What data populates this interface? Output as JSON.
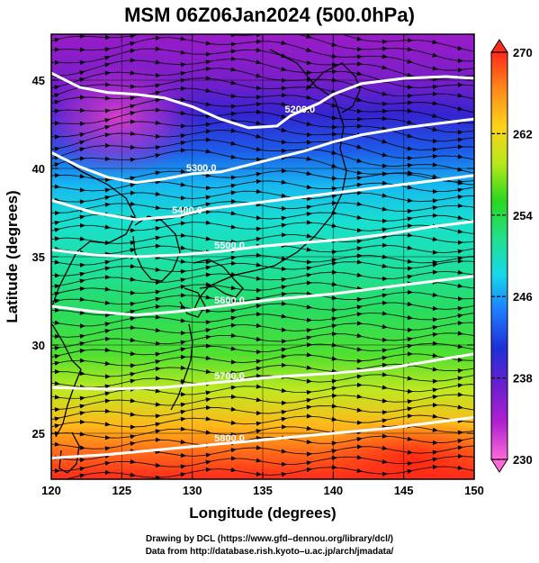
{
  "title": "MSM 06Z06Jan2024 (500.0hPa)",
  "credits": {
    "line1": "Drawing by DCL (https://www.gfd–dennou.org/library/dcl/)",
    "line2": "Data from http://database.rish.kyoto–u.ac.jp/arch/jmadata/"
  },
  "chart_data": {
    "type": "heatmap",
    "title": "MSM 06Z06Jan2024 (500.0hPa)",
    "xlabel": "Longitude (degrees)",
    "ylabel": "Latitude  (degrees)",
    "xlim": [
      120,
      150
    ],
    "ylim": [
      22.4,
      47.6
    ],
    "x_ticks": [
      120,
      125,
      130,
      135,
      140,
      145,
      150
    ],
    "y_ticks": [
      25,
      30,
      35,
      40,
      45
    ],
    "colorbar": {
      "min": 230,
      "max": 270,
      "ticks": [
        230,
        238,
        246,
        254,
        262,
        270
      ],
      "colors": [
        "#ff6ad8",
        "#b020d0",
        "#6a1fd0",
        "#1f2fd8",
        "#1e7bff",
        "#17d8e8",
        "#22e08a",
        "#2ad81e",
        "#b8e81a",
        "#ffd21a",
        "#ff8a1a",
        "#ff2a1a"
      ]
    },
    "contours": [
      {
        "label": "5200.0",
        "points": [
          [
            120,
            45.4
          ],
          [
            122,
            44.6
          ],
          [
            124,
            44.3
          ],
          [
            126,
            44.2
          ],
          [
            128,
            44.0
          ],
          [
            130,
            43.5
          ],
          [
            132,
            42.8
          ],
          [
            134,
            42.3
          ],
          [
            136,
            42.4
          ],
          [
            137,
            43.0
          ],
          [
            139,
            43.7
          ],
          [
            140,
            44.2
          ],
          [
            142,
            44.8
          ],
          [
            145,
            45.1
          ],
          [
            148,
            45.2
          ],
          [
            150,
            45.1
          ]
        ]
      },
      {
        "label": "5300.0",
        "points": [
          [
            120,
            40.9
          ],
          [
            122,
            40.1
          ],
          [
            124,
            39.5
          ],
          [
            126,
            39.2
          ],
          [
            128,
            39.4
          ],
          [
            130,
            39.7
          ],
          [
            132,
            39.8
          ],
          [
            134,
            40.2
          ],
          [
            136,
            40.6
          ],
          [
            138,
            41.0
          ],
          [
            140,
            41.5
          ],
          [
            142,
            41.9
          ],
          [
            145,
            42.3
          ],
          [
            148,
            42.6
          ],
          [
            150,
            42.8
          ]
        ]
      },
      {
        "label": "5400.0",
        "points": [
          [
            120,
            38.2
          ],
          [
            123,
            37.5
          ],
          [
            126,
            37.1
          ],
          [
            129,
            37.3
          ],
          [
            131,
            37.7
          ],
          [
            134,
            38.0
          ],
          [
            137,
            38.3
          ],
          [
            140,
            38.6
          ],
          [
            143,
            38.9
          ],
          [
            146,
            39.2
          ],
          [
            150,
            39.6
          ]
        ]
      },
      {
        "label": "5500.0",
        "points": [
          [
            120,
            35.4
          ],
          [
            123,
            35.1
          ],
          [
            126,
            35.0
          ],
          [
            129,
            35.1
          ],
          [
            132,
            35.3
          ],
          [
            135,
            35.6
          ],
          [
            138,
            35.8
          ],
          [
            141,
            36.0
          ],
          [
            144,
            36.3
          ],
          [
            147,
            36.7
          ],
          [
            150,
            37.0
          ]
        ]
      },
      {
        "label": "5600.0",
        "points": [
          [
            120,
            32.2
          ],
          [
            123,
            31.9
          ],
          [
            126,
            31.7
          ],
          [
            129,
            31.9
          ],
          [
            132,
            32.2
          ],
          [
            136,
            32.6
          ],
          [
            140,
            32.9
          ],
          [
            144,
            33.3
          ],
          [
            147,
            33.6
          ],
          [
            150,
            33.9
          ]
        ]
      },
      {
        "label": "5700.0",
        "points": [
          [
            120,
            27.6
          ],
          [
            124,
            27.5
          ],
          [
            128,
            27.6
          ],
          [
            132,
            27.9
          ],
          [
            136,
            28.2
          ],
          [
            140,
            28.4
          ],
          [
            144,
            28.7
          ],
          [
            147,
            29.1
          ],
          [
            150,
            29.5
          ]
        ]
      },
      {
        "label": "5800.0",
        "points": [
          [
            120,
            23.6
          ],
          [
            124,
            23.8
          ],
          [
            128,
            24.1
          ],
          [
            132,
            24.4
          ],
          [
            136,
            24.7
          ],
          [
            140,
            25.0
          ],
          [
            144,
            25.3
          ],
          [
            147,
            25.6
          ],
          [
            150,
            25.9
          ]
        ]
      }
    ]
  }
}
